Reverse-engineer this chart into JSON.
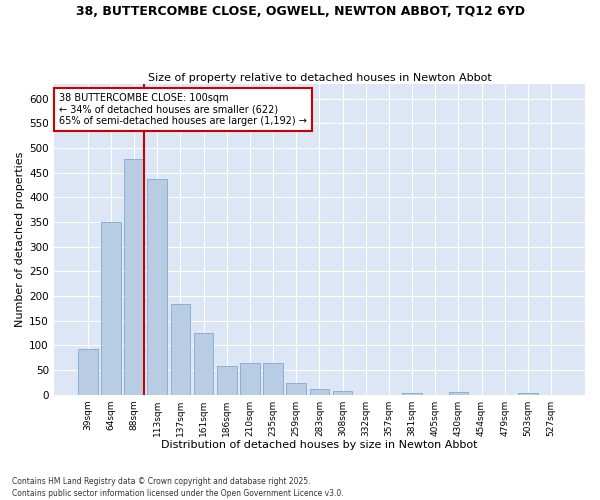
{
  "title_line1": "38, BUTTERCOMBE CLOSE, OGWELL, NEWTON ABBOT, TQ12 6YD",
  "title_line2": "Size of property relative to detached houses in Newton Abbot",
  "xlabel": "Distribution of detached houses by size in Newton Abbot",
  "ylabel": "Number of detached properties",
  "categories": [
    "39sqm",
    "64sqm",
    "88sqm",
    "113sqm",
    "137sqm",
    "161sqm",
    "186sqm",
    "210sqm",
    "235sqm",
    "259sqm",
    "283sqm",
    "308sqm",
    "332sqm",
    "357sqm",
    "381sqm",
    "405sqm",
    "430sqm",
    "454sqm",
    "479sqm",
    "503sqm",
    "527sqm"
  ],
  "values": [
    92,
    350,
    477,
    437,
    183,
    125,
    57,
    65,
    65,
    24,
    11,
    7,
    0,
    0,
    3,
    0,
    6,
    0,
    0,
    4,
    0
  ],
  "bar_color": "#b8cce4",
  "bar_edge_color": "#8ab0d4",
  "annotation_text_line1": "38 BUTTERCOMBE CLOSE: 100sqm",
  "annotation_text_line2": "← 34% of detached houses are smaller (622)",
  "annotation_text_line3": "65% of semi-detached houses are larger (1,192) →",
  "annotation_box_color": "#ffffff",
  "annotation_box_edge": "#cc0000",
  "vline_color": "#cc0000",
  "background_color": "#dce6f5",
  "grid_color": "#ffffff",
  "fig_background": "#ffffff",
  "ylim": [
    0,
    630
  ],
  "yticks": [
    0,
    50,
    100,
    150,
    200,
    250,
    300,
    350,
    400,
    450,
    500,
    550,
    600
  ],
  "footer_line1": "Contains HM Land Registry data © Crown copyright and database right 2025.",
  "footer_line2": "Contains public sector information licensed under the Open Government Licence v3.0."
}
